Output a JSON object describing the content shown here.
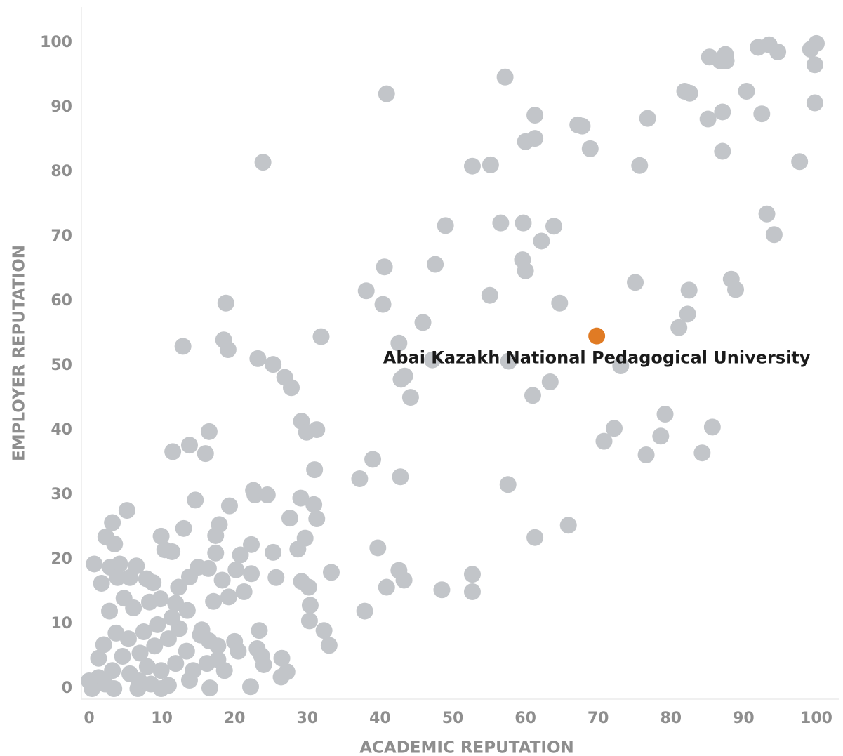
{
  "chart_data": {
    "type": "scatter",
    "xlabel": "ACADEMIC REPUTATION",
    "ylabel": "EMPLOYER REPUTATION",
    "xlim": [
      0,
      100
    ],
    "ylim": [
      0,
      100
    ],
    "xticks": [
      0,
      10,
      20,
      30,
      40,
      50,
      60,
      70,
      80,
      90,
      100
    ],
    "yticks": [
      0,
      10,
      20,
      30,
      40,
      50,
      60,
      70,
      80,
      90,
      100
    ],
    "series": [
      {
        "color": "#c2c5c9",
        "x": [
          100,
          99.2,
          93.5,
          92,
          94.7,
          85.3,
          87.5,
          86.8,
          87.6,
          99.8,
          57.2,
          40.9,
          81.9,
          82.6,
          90.4,
          99.8,
          92.5,
          87.1,
          85.1,
          76.8,
          61.3,
          67.2,
          67.8,
          61.3,
          60,
          68.9,
          87.1,
          97.7,
          23.9,
          52.7,
          55.2,
          75.7,
          93.2,
          94.2,
          49,
          56.6,
          59.7,
          63.9,
          62.2,
          59.6,
          60,
          40.6,
          47.6,
          38.1,
          40.4,
          55.1,
          64.7,
          75.1,
          82.5,
          88.3,
          88.9,
          82.3,
          81.1,
          18.8,
          31.9,
          45.9,
          42.6,
          18.5,
          19.1,
          12.9,
          23.2,
          25.3,
          47.2,
          57.7,
          73.1,
          26.9,
          27.8,
          42.9,
          43.4,
          44.2,
          63.4,
          61,
          79.2,
          85.7,
          72.2,
          70.8,
          78.6,
          76.6,
          84.3,
          16.5,
          11.5,
          13.8,
          16,
          29.2,
          29.9,
          31.3,
          31,
          39,
          37.2,
          42.8,
          57.6,
          22.6,
          22.8,
          24.5,
          14.6,
          5.2,
          3.2,
          19.3,
          29.1,
          30.9,
          31.3,
          27.6,
          13,
          17.9,
          17.4,
          9.9,
          2.3,
          3.5,
          10.4,
          11.4,
          22.3,
          25.3,
          29.7,
          28.7,
          39.7,
          65.9,
          61.3,
          20.8,
          17.4,
          0.7,
          4.2,
          2.9,
          6.5,
          1.7,
          3.9,
          5.6,
          7.9,
          8.8,
          12.3,
          13.8,
          15,
          16.4,
          18.3,
          20.2,
          22.3,
          21.3,
          19.2,
          17.1,
          25.7,
          29.2,
          30.2,
          33.3,
          42.6,
          43.3,
          40.9,
          48.5,
          52.7,
          52.7,
          30.4,
          30.3,
          32.3,
          33,
          37.9,
          23.4,
          2.8,
          4.8,
          6.1,
          8.3,
          9.8,
          11.9,
          13.5,
          15.5,
          16.5,
          13.4,
          20,
          20.5,
          23.1,
          23.7,
          24,
          26.5,
          27.2,
          26.4,
          22.2,
          16.6,
          13.8,
          10.9,
          9.9,
          6.7,
          3.4,
          0.4,
          1.3,
          2,
          3.7,
          5.4,
          7.5,
          9,
          10.9,
          12.4,
          15.3,
          17.7,
          18.6,
          16.2,
          14.3,
          11.9,
          9.9,
          8,
          5.6,
          3.2,
          1.3,
          4.6,
          7,
          9.4,
          11.4,
          17.7,
          6.9,
          8.5,
          2.2,
          0
        ],
        "y": [
          99.9,
          99,
          99.7,
          99.3,
          98.6,
          97.8,
          98.2,
          97.2,
          97.2,
          96.6,
          94.7,
          92.1,
          92.5,
          92.2,
          92.5,
          90.7,
          89,
          89.3,
          88.2,
          88.3,
          88.8,
          87.3,
          87.1,
          85.2,
          84.7,
          83.6,
          83.2,
          81.6,
          81.5,
          80.9,
          81.1,
          81,
          73.5,
          70.3,
          71.7,
          72.1,
          72.1,
          71.6,
          69.3,
          66.4,
          64.7,
          65.3,
          65.7,
          61.6,
          59.5,
          60.9,
          59.7,
          62.9,
          61.7,
          63.4,
          61.8,
          58,
          55.9,
          59.7,
          54.5,
          56.7,
          53.5,
          54,
          52.5,
          53,
          51.1,
          50.2,
          50.9,
          50.7,
          50,
          48.2,
          46.6,
          47.9,
          48.4,
          45.1,
          47.5,
          45.4,
          42.5,
          40.5,
          40.3,
          38.3,
          39.1,
          36.2,
          36.5,
          39.8,
          36.7,
          37.7,
          36.4,
          41.4,
          39.7,
          40.1,
          33.9,
          35.5,
          32.5,
          32.8,
          31.6,
          30.7,
          30,
          30,
          29.2,
          27.6,
          25.7,
          28.3,
          29.5,
          28.5,
          26.3,
          26.4,
          24.8,
          25.4,
          23.7,
          23.6,
          23.5,
          22.4,
          21.5,
          21.2,
          22.3,
          21.1,
          23.3,
          21.6,
          21.8,
          25.3,
          23.4,
          20.7,
          21,
          19.3,
          19.3,
          18.8,
          19,
          16.3,
          17.2,
          17.2,
          17,
          16.4,
          15.7,
          17.3,
          18.8,
          18.6,
          16.8,
          18.4,
          17.8,
          15,
          14.2,
          13.5,
          17.2,
          16.6,
          15.7,
          18,
          18.3,
          16.8,
          15.7,
          15.3,
          17.7,
          15,
          12.9,
          10.5,
          9,
          6.7,
          12,
          9,
          12,
          14,
          12.5,
          13.4,
          13.9,
          13.2,
          12.1,
          9.1,
          7.4,
          5.8,
          7.3,
          5.8,
          6.2,
          5.1,
          3.7,
          4.7,
          2.6,
          1.8,
          0.3,
          0.1,
          1.3,
          0.5,
          0,
          0,
          0,
          0,
          4.7,
          6.8,
          8.6,
          7.7,
          8.8,
          6.6,
          7.7,
          9.3,
          8.3,
          4.5,
          2.8,
          3.9,
          2.8,
          3.9,
          2.8,
          3.4,
          2.3,
          2.8,
          1.7,
          5,
          5.5,
          9.9,
          11,
          6.6,
          1.2,
          0.7,
          0.7,
          1.2
        ]
      },
      {
        "color": "#e07b24",
        "label": "Abai Kazakh National Pedagogical University",
        "x": [
          69.8
        ],
        "y": [
          54.6
        ]
      }
    ]
  }
}
